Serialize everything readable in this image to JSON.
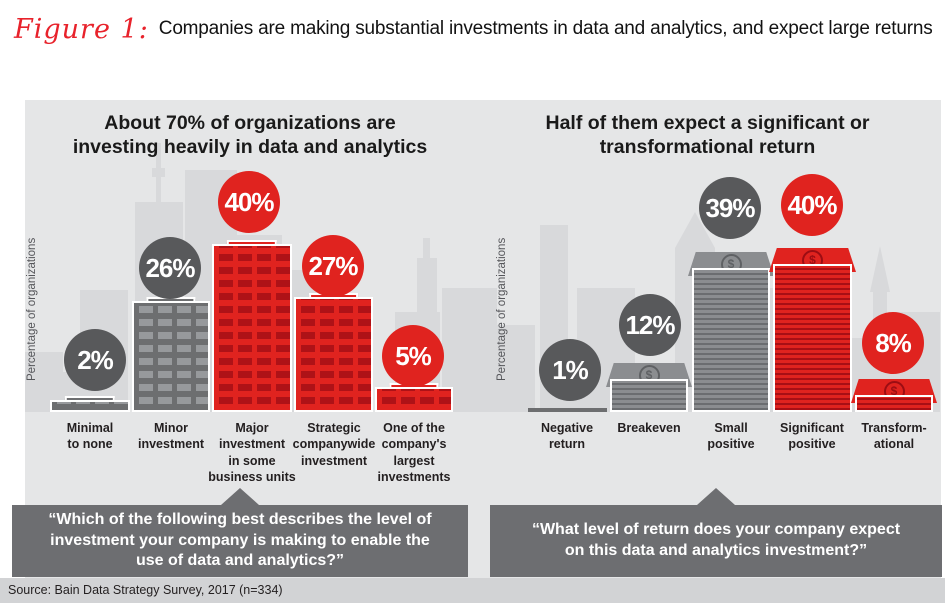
{
  "figure": {
    "label": "Figure 1:",
    "title": "Companies are making substantial investments in data and analytics, and expect large returns",
    "source": "Source: Bain Data Strategy Survey, 2017 (n=334)"
  },
  "colors": {
    "accent_red": "#e0231f",
    "badge_gray": "#58595b",
    "building_gray": "#6d6e70",
    "panel_bg": "#e5e6e7",
    "skyline_gray": "#d8d9db",
    "callout_bg": "#6d6e71",
    "source_band_bg": "#d2d3d5"
  },
  "chart_data": [
    {
      "type": "bar",
      "title": "About 70% of organizations are investing heavily in data and analytics",
      "xlabel": "",
      "ylabel": "Percentage of organizations",
      "unit": "%",
      "categories": [
        "Minimal to none",
        "Minor investment",
        "Major investment in some business units",
        "Strategic companywide investment",
        "One of the company's largest investments"
      ],
      "values": [
        2,
        26,
        40,
        27,
        5
      ],
      "colors": [
        "gray",
        "gray",
        "red",
        "red",
        "red"
      ],
      "bar_style": "city buildings",
      "grid": false,
      "legend": false,
      "question": "“Which of the following best describes the level of investment your company is making to enable the use of data and analytics?”"
    },
    {
      "type": "bar",
      "title": "Half of them expect a significant or transformational return",
      "xlabel": "",
      "ylabel": "Percentage of organizations",
      "unit": "%",
      "categories": [
        "Negative return",
        "Breakeven",
        "Small positive",
        "Significant positive",
        "Transformational"
      ],
      "values": [
        1,
        12,
        39,
        40,
        8
      ],
      "colors": [
        "gray",
        "gray",
        "gray",
        "red",
        "red"
      ],
      "bar_style": "money stacks with dollar sign",
      "grid": false,
      "legend": false,
      "question": "“What level of return does your company expect on this data and analytics investment?”"
    }
  ],
  "display": {
    "left_chart": {
      "title": "About 70% of organizations are\ninvesting heavily in data and analytics",
      "ylabel": "Percentage of organizations",
      "bars": [
        {
          "badge": "2%",
          "label": "Minimal\nto none"
        },
        {
          "badge": "26%",
          "label": "Minor\ninvestment"
        },
        {
          "badge": "40%",
          "label": "Major\ninvestment\nin some\nbusiness units"
        },
        {
          "badge": "27%",
          "label": "Strategic\ncompanywide\ninvestment"
        },
        {
          "badge": "5%",
          "label": "One of the\ncompany's\nlargest\ninvestments"
        }
      ],
      "question": "“Which of the following best describes the level of\ninvestment your company is making to enable the\nuse of data and analytics?”"
    },
    "right_chart": {
      "title": "Half of them expect a significant or\ntransformational return",
      "ylabel": "Percentage of organizations",
      "bars": [
        {
          "badge": "1%",
          "label": "Negative\nreturn"
        },
        {
          "badge": "12%",
          "label": "Breakeven"
        },
        {
          "badge": "39%",
          "label": "Small\npositive"
        },
        {
          "badge": "40%",
          "label": "Significant\npositive"
        },
        {
          "badge": "8%",
          "label": "Transform-\national"
        }
      ],
      "question": "“What level of return does your company expect\non this data and analytics investment?”"
    },
    "dollar_glyph": "$"
  }
}
